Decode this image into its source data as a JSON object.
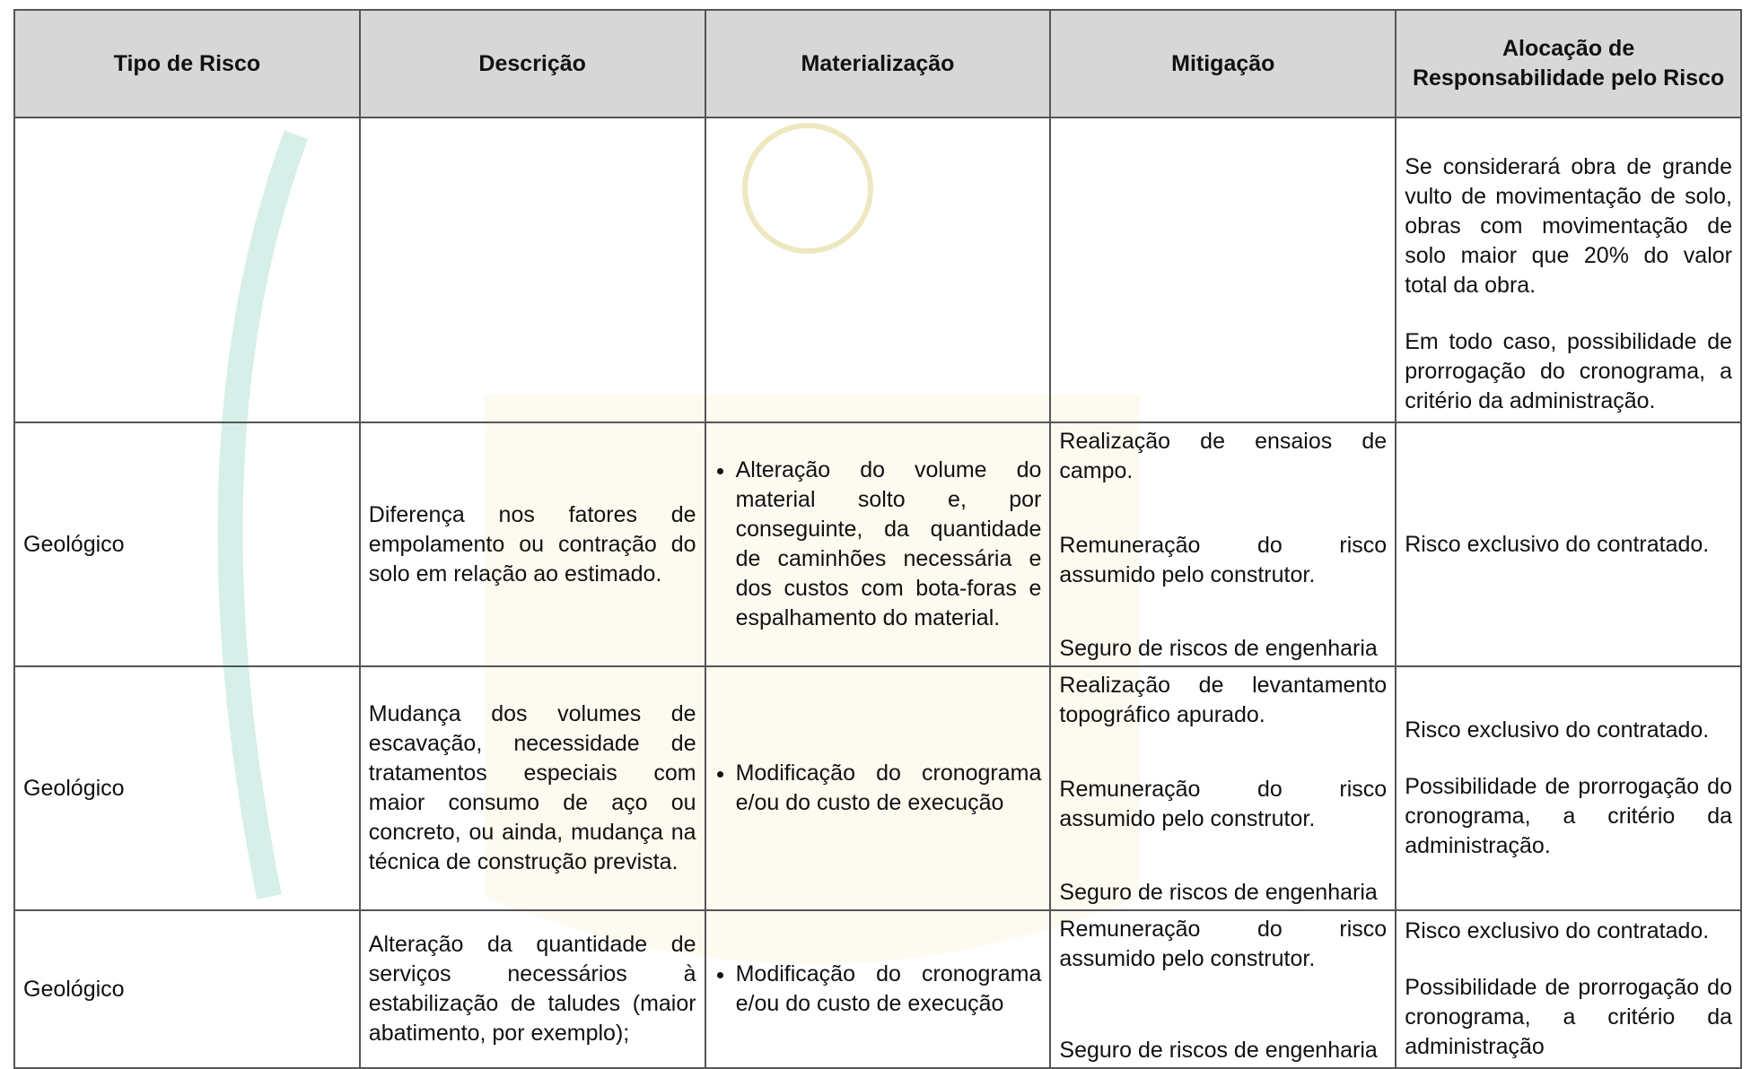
{
  "table": {
    "headers": [
      "Tipo de Risco",
      "Descrição",
      "Materialização",
      "Mitigação",
      "Alocação de Responsabilidade pelo Risco"
    ],
    "rows": [
      [
        null,
        null,
        null,
        null,
        {
          "paragraphs": [
            "Se considerará obra de grande vulto de movimentação de solo, obras com movimentação de solo maior que 20% do valor total da obra.",
            "Em todo caso, possibilidade de prorrogação do cronograma, a critério da administração."
          ]
        }
      ],
      [
        {
          "paragraphs": [
            "Geológico"
          ]
        },
        {
          "paragraphs": [
            "Diferença nos fatores de empolamento ou contração do solo em relação ao estimado."
          ]
        },
        {
          "bullets": [
            "Alteração do volume do material solto e, por conseguinte, da quantidade de caminhões necessária e dos custos com bota-foras e espalhamento do material."
          ]
        },
        {
          "paragraphs": [
            "Realização de ensaios de campo.",
            "Remuneração do risco assumido pelo construtor.",
            "Seguro de riscos de engenharia"
          ]
        },
        {
          "paragraphs": [
            "Risco exclusivo do contratado."
          ]
        }
      ],
      [
        {
          "paragraphs": [
            "Geológico"
          ]
        },
        {
          "paragraphs": [
            "Mudança dos volumes de escavação, necessidade de tratamentos especiais com maior consumo de aço ou concreto, ou ainda, mudança na técnica de construção prevista."
          ]
        },
        {
          "bullets": [
            "Modificação do cronograma e/ou do custo de execução"
          ]
        },
        {
          "paragraphs": [
            "Realização de levantamento topográfico apurado.",
            "Remuneração do risco assumido pelo construtor.",
            "Seguro de riscos de engenharia"
          ]
        },
        {
          "paragraphs": [
            "Risco exclusivo do contratado.",
            "Possibilidade de prorrogação do cronograma, a critério da administração."
          ]
        }
      ],
      [
        {
          "paragraphs": [
            "Geológico"
          ]
        },
        {
          "paragraphs": [
            "Alteração da quantidade de serviços necessários à estabilização de taludes (maior abatimento, por exemplo);"
          ]
        },
        {
          "bullets": [
            "Modificação do cronograma e/ou do custo de execução"
          ]
        },
        {
          "paragraphs": [
            "Remuneração do risco assumido pelo construtor.",
            "Seguro de riscos de engenharia"
          ]
        },
        {
          "paragraphs": [
            "Risco exclusivo do contratado.",
            "Possibilidade de prorrogação do cronograma, a critério da administração"
          ]
        }
      ]
    ]
  }
}
